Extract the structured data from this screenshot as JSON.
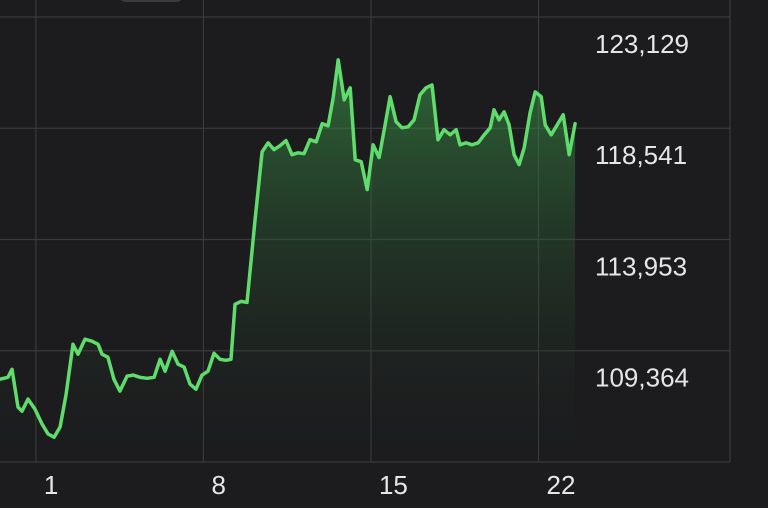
{
  "chart_data": {
    "type": "area",
    "color": "#5fdc6b",
    "grid": true,
    "xlim": [
      -0.5,
      30
    ],
    "ylim": [
      104776,
      123129
    ],
    "xticks": [
      1,
      8,
      15,
      22
    ],
    "yticks": [
      {
        "value": 109364,
        "label": "109,364"
      },
      {
        "value": 113953,
        "label": "113,953"
      },
      {
        "value": 118541,
        "label": "118,541"
      },
      {
        "value": 123129,
        "label": "123,129"
      }
    ],
    "x": [
      -0.5,
      -0.17,
      0.0,
      0.25,
      0.42,
      0.67,
      0.96,
      1.26,
      1.51,
      1.76,
      2.01,
      2.26,
      2.55,
      2.76,
      3.05,
      3.34,
      3.6,
      3.76,
      4.01,
      4.26,
      4.51,
      4.81,
      5.06,
      5.35,
      5.64,
      5.94,
      6.19,
      6.4,
      6.69,
      6.94,
      7.19,
      7.44,
      7.69,
      7.94,
      8.19,
      8.44,
      8.69,
      8.94,
      9.15,
      9.32,
      9.57,
      9.82,
      10.16,
      10.45,
      10.7,
      10.95,
      11.2,
      11.45,
      11.7,
      11.95,
      12.2,
      12.45,
      12.71,
      12.96,
      13.21,
      13.42,
      13.63,
      13.88,
      14.13,
      14.34,
      14.59,
      14.84,
      15.09,
      15.34,
      15.59,
      15.8,
      16.05,
      16.3,
      16.55,
      16.8,
      17.05,
      17.3,
      17.55,
      17.8,
      18.05,
      18.31,
      18.56,
      18.72,
      18.97,
      19.22,
      19.48,
      19.73,
      19.98,
      20.14,
      20.35,
      20.56,
      20.77,
      20.98,
      21.19,
      21.4,
      21.65,
      21.86,
      22.11,
      22.28,
      22.53,
      22.78,
      23.03,
      23.28,
      23.53
    ],
    "values": [
      108190,
      108270,
      108600,
      107040,
      106870,
      107370,
      106960,
      106340,
      105930,
      105800,
      106220,
      107570,
      109630,
      109220,
      109840,
      109760,
      109630,
      109220,
      109100,
      108190,
      107700,
      108320,
      108360,
      108270,
      108230,
      108270,
      109010,
      108520,
      109340,
      108810,
      108690,
      107990,
      107780,
      108360,
      108520,
      109260,
      109010,
      108970,
      109010,
      111280,
      111400,
      111360,
      114780,
      117570,
      117940,
      117660,
      117820,
      118030,
      117450,
      117530,
      117490,
      118070,
      117980,
      118730,
      118640,
      119800,
      121360,
      119710,
      120210,
      117240,
      117160,
      116010,
      117860,
      117330,
      118680,
      119840,
      118810,
      118560,
      118600,
      118890,
      119920,
      120210,
      120330,
      118070,
      118480,
      118270,
      118480,
      117860,
      117940,
      117860,
      117940,
      118270,
      118560,
      119300,
      118890,
      119220,
      118680,
      117450,
      117040,
      117740,
      119180,
      120040,
      119840,
      118680,
      118270,
      118680,
      119100,
      117450,
      118730
    ]
  }
}
